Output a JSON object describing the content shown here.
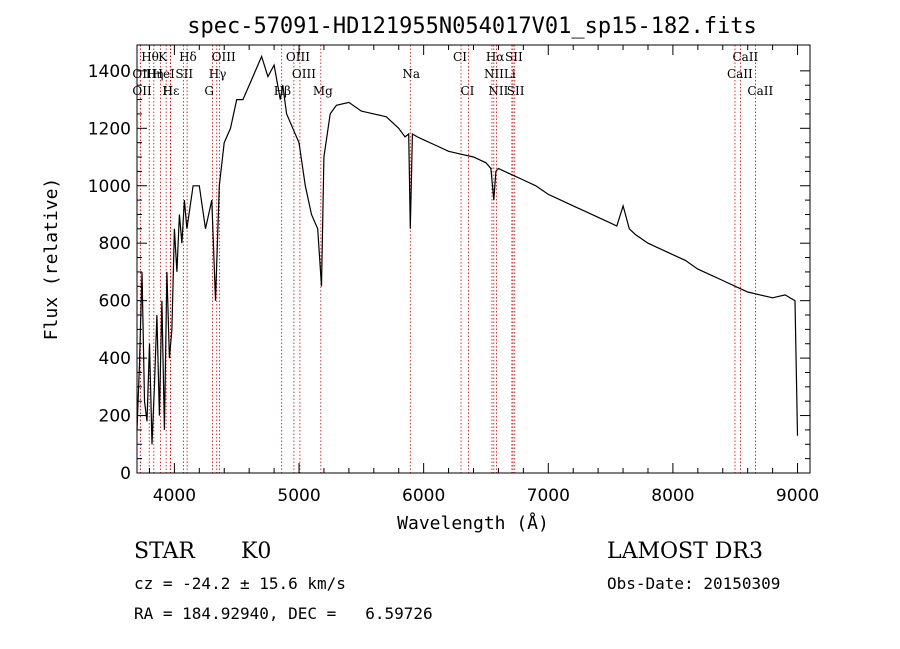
{
  "chart_data": {
    "type": "line",
    "title": "spec-57091-HD121955N054017V01_sp15-182.fits",
    "xlabel": "Wavelength (Å)",
    "ylabel": "Flux (relative)",
    "xlim": [
      3700,
      9100
    ],
    "ylim": [
      0,
      1490
    ],
    "xticks": [
      4000,
      5000,
      6000,
      7000,
      8000,
      9000
    ],
    "yticks": [
      0,
      200,
      400,
      600,
      800,
      1000,
      1200,
      1400
    ],
    "series": [
      {
        "name": "spectrum",
        "x": [
          3700,
          3720,
          3740,
          3760,
          3780,
          3800,
          3820,
          3840,
          3860,
          3880,
          3900,
          3920,
          3940,
          3960,
          3980,
          4000,
          4020,
          4040,
          4060,
          4080,
          4100,
          4150,
          4200,
          4250,
          4300,
          4330,
          4360,
          4400,
          4450,
          4500,
          4550,
          4600,
          4650,
          4700,
          4750,
          4800,
          4850,
          4870,
          4900,
          4950,
          5000,
          5050,
          5100,
          5150,
          5180,
          5200,
          5250,
          5300,
          5400,
          5500,
          5600,
          5700,
          5800,
          5850,
          5880,
          5893,
          5910,
          5950,
          6000,
          6100,
          6200,
          6300,
          6400,
          6500,
          6540,
          6563,
          6580,
          6600,
          6650,
          6700,
          6800,
          6900,
          7000,
          7100,
          7200,
          7300,
          7400,
          7500,
          7550,
          7600,
          7650,
          7700,
          7800,
          7900,
          8000,
          8100,
          8200,
          8300,
          8400,
          8500,
          8600,
          8700,
          8800,
          8900,
          8980,
          9000
        ],
        "y": [
          150,
          380,
          700,
          250,
          180,
          450,
          100,
          300,
          550,
          200,
          600,
          150,
          700,
          400,
          500,
          850,
          700,
          900,
          800,
          950,
          850,
          1000,
          1000,
          850,
          950,
          600,
          1000,
          1150,
          1200,
          1300,
          1300,
          1350,
          1400,
          1450,
          1380,
          1420,
          1300,
          1350,
          1250,
          1200,
          1150,
          1000,
          900,
          850,
          650,
          1100,
          1250,
          1280,
          1290,
          1260,
          1250,
          1240,
          1200,
          1170,
          1180,
          850,
          1180,
          1170,
          1160,
          1140,
          1120,
          1110,
          1100,
          1080,
          1060,
          950,
          1050,
          1060,
          1050,
          1040,
          1020,
          1000,
          970,
          950,
          930,
          910,
          890,
          870,
          860,
          930,
          850,
          830,
          800,
          780,
          760,
          740,
          710,
          690,
          670,
          650,
          630,
          620,
          610,
          620,
          600,
          130
        ]
      }
    ],
    "spectral_lines": [
      {
        "name": "Hθ",
        "wavelength": 3798,
        "row": 1
      },
      {
        "name": "K",
        "wavelength": 3934,
        "row": 1
      },
      {
        "name": "Hδ",
        "wavelength": 4102,
        "row": 1
      },
      {
        "name": "OIII",
        "wavelength": 4363,
        "row": 1
      },
      {
        "name": "OIII",
        "wavelength": 4959,
        "row": 1
      },
      {
        "name": "CI",
        "wavelength": 6300,
        "row": 1
      },
      {
        "name": "Hα",
        "wavelength": 6563,
        "row": 1
      },
      {
        "name": "SII",
        "wavelength": 6717,
        "row": 1
      },
      {
        "name": "CaII",
        "wavelength": 8542,
        "row": 1
      },
      {
        "name": "OII",
        "wavelength": 3727,
        "row": 2
      },
      {
        "name": "Hη",
        "wavelength": 3835,
        "row": 2
      },
      {
        "name": "HeI",
        "wavelength": 3889,
        "row": 2
      },
      {
        "name": "SII",
        "wavelength": 4072,
        "row": 2
      },
      {
        "name": "Hγ",
        "wavelength": 4340,
        "row": 2
      },
      {
        "name": "OIII",
        "wavelength": 5007,
        "row": 2
      },
      {
        "name": "Na",
        "wavelength": 5893,
        "row": 2
      },
      {
        "name": "NII",
        "wavelength": 6548,
        "row": 2
      },
      {
        "name": "Li",
        "wavelength": 6708,
        "row": 2
      },
      {
        "name": "CaII",
        "wavelength": 8498,
        "row": 2
      },
      {
        "name": "OII",
        "wavelength": 3727,
        "row": 3
      },
      {
        "name": "Hε",
        "wavelength": 3970,
        "row": 3
      },
      {
        "name": "H",
        "wavelength": 3968,
        "row": 3
      },
      {
        "name": "G",
        "wavelength": 4305,
        "row": 3
      },
      {
        "name": "Hβ",
        "wavelength": 4861,
        "row": 3
      },
      {
        "name": "Mg",
        "wavelength": 5175,
        "row": 3
      },
      {
        "name": "CI",
        "wavelength": 6360,
        "row": 3
      },
      {
        "name": "NII",
        "wavelength": 6584,
        "row": 3
      },
      {
        "name": "SII",
        "wavelength": 6731,
        "row": 3
      },
      {
        "name": "CaII",
        "wavelength": 8662,
        "row": 3
      }
    ],
    "line_marker_color": "#cc0000"
  },
  "info": {
    "object_class": "STAR",
    "subclass": "K0",
    "survey": "LAMOST DR3",
    "redshift": "cz = -24.2 ± 15.6 km/s",
    "obs_date": "Obs-Date: 20150309",
    "coords": "RA = 184.92940, DEC =   6.59726"
  }
}
